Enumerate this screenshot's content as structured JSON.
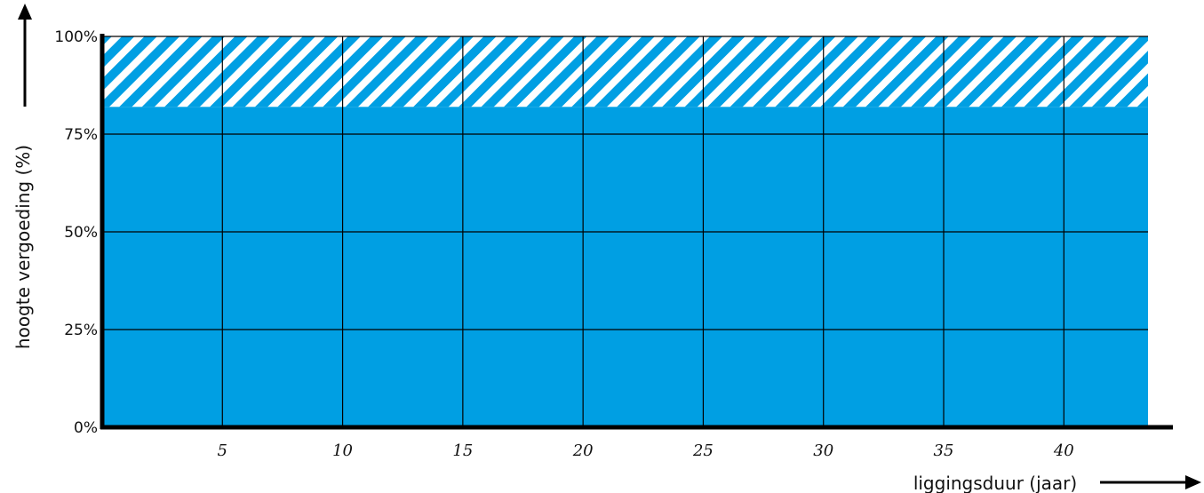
{
  "chart_data": {
    "type": "area",
    "title": "",
    "xlabel": "liggingsduur (jaar)",
    "ylabel": "hoogte vergoeding (%)",
    "xlim": [
      0,
      43.5
    ],
    "ylim": [
      0,
      100
    ],
    "x_ticks": [
      "5",
      "10",
      "15",
      "20",
      "25",
      "30",
      "35",
      "40"
    ],
    "x_tick_values": [
      5,
      10,
      15,
      20,
      25,
      30,
      35,
      40
    ],
    "y_ticks": [
      "0%",
      "25%",
      "50%",
      "75%",
      "100%"
    ],
    "y_tick_values": [
      0,
      25,
      50,
      75,
      100
    ],
    "grid": true,
    "series": [
      {
        "style": "solid",
        "color": "#009fe3",
        "from": 0,
        "to": 82,
        "x_range": [
          0,
          43.5
        ]
      },
      {
        "style": "hatched",
        "color": "#009fe3",
        "from": 82,
        "to": 100,
        "x_range": [
          0,
          43.5
        ]
      }
    ]
  }
}
